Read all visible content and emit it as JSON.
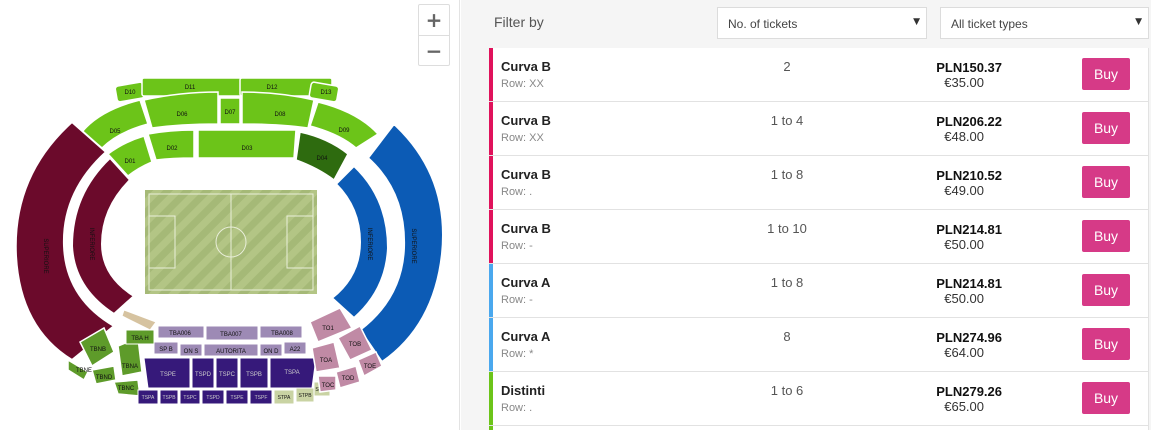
{
  "map": {
    "zoom_in": "+",
    "zoom_out": "−",
    "colors": {
      "green": "#6cc419",
      "dark_green": "#2e6b0f",
      "curva_maroon": "#6b0a2b",
      "curva_blue": "#0c5bb5",
      "tribuna_purple": "#36197a",
      "mauve": "#c08aa5",
      "olive": "#5e9b2a",
      "lavender": "#9d8ab5",
      "pitch": "#a9bc7a"
    },
    "labels": {
      "d10": "D10",
      "d11": "D11",
      "d12": "D12",
      "d13": "D13",
      "d05": "D05",
      "d06": "D06",
      "d07": "D07",
      "d08": "D08",
      "d09": "D09",
      "d01": "D01",
      "d02": "D02",
      "d03": "D03",
      "d04": "D04",
      "superiore": "SUPERIORE",
      "inferiore": "INFERIORE",
      "to1": "TO1",
      "tob": "TOB",
      "toa": "TOA",
      "toe": "TOE",
      "tod": "TOD",
      "toc": "TOC",
      "tba006": "TBA006",
      "tba007": "TBA007",
      "tba008": "TBA008",
      "tba_h": "TBA H",
      "sp_b": "SP B",
      "on_s": "ON S",
      "autorita": "AUTORITA",
      "on_d": "ON D",
      "a22": "A22",
      "tbnb": "TBNB",
      "tbna": "TBNA",
      "tbne": "TBNE",
      "tbnd": "TBND",
      "tbnc": "TBNC",
      "tspe": "TSPE",
      "tspd": "TSPD",
      "tspc": "TSPC",
      "tspb": "TSPB",
      "tspa": "TSPA",
      "tspa2": "TSPA",
      "tspb2": "TSPB",
      "tspc2": "TSPC",
      "tspd2": "TSPD",
      "tspe2": "TSPE",
      "tspf": "TSPF",
      "stpa": "STPA",
      "stpb": "STPB",
      "stpc": "STPC"
    }
  },
  "filter": {
    "label": "Filter by",
    "tickets_value": "No. of tickets",
    "types_value": "All ticket types"
  },
  "listings": [
    {
      "section": "Curva B",
      "row": "Row: XX",
      "qty": "2",
      "pln": "PLN150.37",
      "eur": "€35.00",
      "buy": "Buy",
      "color": "#e0125b"
    },
    {
      "section": "Curva B",
      "row": "Row: XX",
      "qty": "1 to 4",
      "pln": "PLN206.22",
      "eur": "€48.00",
      "buy": "Buy",
      "color": "#e0125b"
    },
    {
      "section": "Curva B",
      "row": "Row: .",
      "qty": "1 to 8",
      "pln": "PLN210.52",
      "eur": "€49.00",
      "buy": "Buy",
      "color": "#e0125b"
    },
    {
      "section": "Curva B",
      "row": "Row: -",
      "qty": "1 to 10",
      "pln": "PLN214.81",
      "eur": "€50.00",
      "buy": "Buy",
      "color": "#e0125b"
    },
    {
      "section": "Curva A",
      "row": "Row: -",
      "qty": "1 to 8",
      "pln": "PLN214.81",
      "eur": "€50.00",
      "buy": "Buy",
      "color": "#4aa8ee"
    },
    {
      "section": "Curva A",
      "row": "Row: *",
      "qty": "8",
      "pln": "PLN274.96",
      "eur": "€64.00",
      "buy": "Buy",
      "color": "#4aa8ee"
    },
    {
      "section": "Distinti",
      "row": "Row: .",
      "qty": "1 to 6",
      "pln": "PLN279.26",
      "eur": "€65.00",
      "buy": "Buy",
      "color": "#6cc419"
    }
  ],
  "partial_row_color": "#6cc419"
}
